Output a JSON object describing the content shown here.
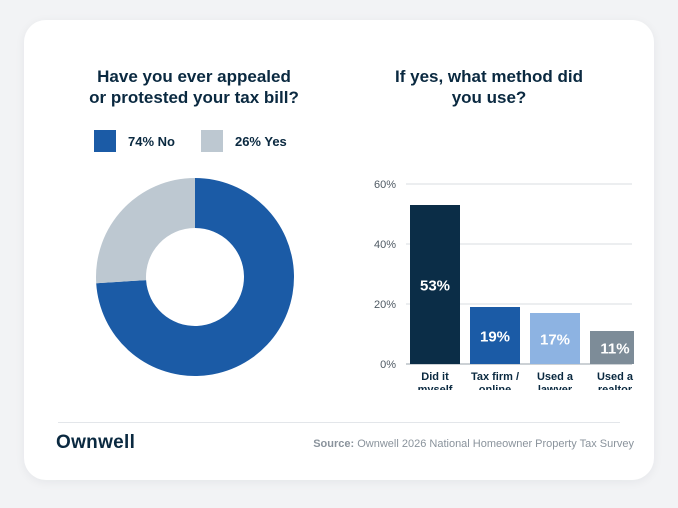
{
  "brand": {
    "name": "Ownwell"
  },
  "source": {
    "label": "Source:",
    "text": "Ownwell 2026 National Homeowner Property Tax Survey"
  },
  "chart_data": [
    {
      "type": "pie",
      "donut": true,
      "title_lines": [
        "Have you ever appealed",
        "or protested your tax bill?"
      ],
      "legend_placement": "top",
      "series": [
        {
          "name": "74% No",
          "value": 74,
          "color": "#1b5ba6"
        },
        {
          "name": "26% Yes",
          "value": 26,
          "color": "#bdc8d1"
        }
      ]
    },
    {
      "type": "bar",
      "title_lines": [
        "If yes, what method did",
        "you use?"
      ],
      "categories": [
        [
          "Did it",
          "myself"
        ],
        [
          "Tax firm /",
          "online"
        ],
        [
          "Used a",
          "lawyer"
        ],
        [
          "Used a",
          "realtor"
        ]
      ],
      "values": [
        53,
        19,
        17,
        11
      ],
      "data_labels": [
        "53%",
        "19%",
        "17%",
        "11%"
      ],
      "colors": [
        "#0b2d47",
        "#1b5ba6",
        "#8db3e2",
        "#7d8c98"
      ],
      "label_colors": [
        "#ffffff",
        "#ffffff",
        "#ffffff",
        "#ffffff"
      ],
      "y_ticks": [
        0,
        20,
        40,
        60
      ],
      "y_tick_labels": [
        "0%",
        "20%",
        "40%",
        "60%"
      ],
      "ylim": [
        0,
        60
      ],
      "grid": true
    }
  ]
}
